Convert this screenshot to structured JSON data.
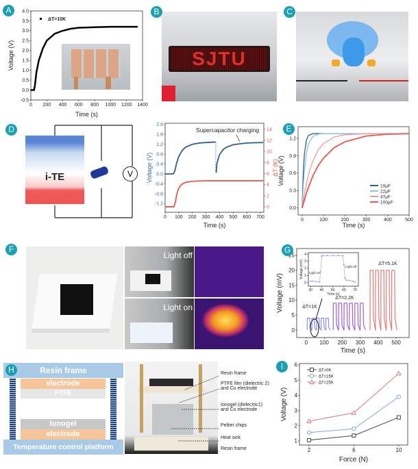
{
  "panels": {
    "a": "A",
    "b": "B",
    "c": "C",
    "d": "D",
    "e": "E",
    "f": "F",
    "g": "G",
    "h": "H",
    "i": "I"
  },
  "colors": {
    "panel_label": "#1a9fb3",
    "blue": "#2b5c93",
    "red": "#e8564a",
    "light_blue": "#8fc1e3",
    "pink": "#ef9a9a",
    "purple": "#a05ee0",
    "light_purple": "#8e8ef0"
  },
  "photos": {
    "b_display_text": "SJTU",
    "f_light_off": "Light off",
    "f_light_on": "Light on"
  },
  "schematic_d": {
    "block_label": "i-TE",
    "meter_symbol": "V"
  },
  "schematic_h": {
    "top": "Resin frame",
    "electrode_top": "electrode",
    "ptfe": "PTFE",
    "ionogel": "Ionogel",
    "electrode_bottom": "electrode",
    "bottom": "Temperature control platform",
    "callouts": [
      "Resin frame",
      "PTFE film (dielectric 2)\nand Cu electrode",
      "Ionogel (dielectric1)\nand Cu electrode",
      "Peltier chips",
      "Heat sink",
      "Resin frame"
    ]
  },
  "chart_data": [
    {
      "panel": "A",
      "type": "line",
      "xlabel": "Time (s)",
      "ylabel": "Voltage (V)",
      "xlim": [
        0,
        1400
      ],
      "ylim": [
        -0.5,
        4.0
      ],
      "xticks": [
        "0",
        "200",
        "400",
        "600",
        "800",
        "1000",
        "1200",
        "1400"
      ],
      "yticks": [
        "-0.5",
        "0.0",
        "0.5",
        "1.0",
        "1.5",
        "2.0",
        "2.5",
        "3.0",
        "3.5",
        "4.0"
      ],
      "legend": "top-left",
      "series": [
        {
          "name": "ΔT=10K",
          "color": "#000000",
          "x": [
            0,
            40,
            50,
            70,
            100,
            150,
            200,
            300,
            400,
            500,
            600,
            800,
            1000,
            1200,
            1340
          ],
          "y": [
            0,
            0,
            0.2,
            0.9,
            1.5,
            2.1,
            2.5,
            2.85,
            3.0,
            3.1,
            3.15,
            3.18,
            3.2,
            3.2,
            3.2
          ]
        }
      ]
    },
    {
      "panel": "D",
      "type": "line",
      "xlabel": "Time (s)",
      "ylabel": "Voltage (V)",
      "ylabel2": "ΔT (K)",
      "xlim": [
        0,
        725
      ],
      "ylim": [
        -1.55,
        2.05
      ],
      "ylim2": [
        -1,
        15.1
      ],
      "xticks": [
        "0",
        "100",
        "200",
        "300",
        "400",
        "500",
        "600",
        "700"
      ],
      "yticks": [
        "-1.2",
        "-0.8",
        "-0.4",
        "0.0",
        "0.4",
        "0.8",
        "1.2",
        "1.6",
        "2.0"
      ],
      "yticks2": [
        "0",
        "2",
        "4",
        "6",
        "8",
        "10",
        "12",
        "14"
      ],
      "annotation": "Supercapacitor charging",
      "series": [
        {
          "axis": "left",
          "color": "#2b5c93",
          "x": [
            0,
            60,
            70,
            85,
            100,
            125,
            150,
            200,
            250,
            300,
            370
          ],
          "y": [
            0,
            0,
            0.1,
            0.45,
            0.7,
            0.95,
            1.08,
            1.2,
            1.25,
            1.27,
            1.29
          ]
        },
        {
          "axis": "left",
          "color": "#2b5c93",
          "x": [
            375,
            380,
            390,
            400,
            425,
            450,
            500,
            550,
            600,
            650,
            720
          ],
          "y": [
            0.05,
            0.4,
            0.62,
            0.78,
            0.98,
            1.08,
            1.18,
            1.22,
            1.25,
            1.26,
            1.27
          ]
        },
        {
          "axis": "right",
          "color": "#e8564a",
          "x": [
            0,
            65,
            75,
            85,
            100,
            125,
            150,
            200,
            250,
            300,
            400,
            720
          ],
          "y": [
            0,
            0,
            0.8,
            2.2,
            3.4,
            4.1,
            4.4,
            4.6,
            4.65,
            4.7,
            4.7,
            4.7
          ]
        }
      ]
    },
    {
      "panel": "E",
      "type": "line",
      "xlabel": "Time (s)",
      "ylabel": "Voltage (V)",
      "xlim": [
        -19,
        500
      ],
      "ylim": [
        -0.12,
        1.4
      ],
      "xticks": [
        "0",
        "100",
        "200",
        "300",
        "400",
        "500"
      ],
      "yticks": [
        "0.0",
        "0.3",
        "0.6",
        "0.9",
        "1.2"
      ],
      "legend": "bottom-right",
      "x": [
        0,
        5,
        10,
        20,
        30,
        50,
        75,
        100,
        150,
        200,
        300,
        400,
        500
      ],
      "series": [
        {
          "name": "10μF",
          "color": "#2b5c93",
          "y": [
            0,
            0.6,
            0.91,
            1.17,
            1.25,
            1.28,
            1.28,
            1.28,
            1.28,
            1.28,
            1.28,
            1.28,
            1.28
          ]
        },
        {
          "name": "22μF",
          "color": "#8fc1e3",
          "y": [
            0,
            0.36,
            0.62,
            0.94,
            1.11,
            1.23,
            1.27,
            1.28,
            1.28,
            1.28,
            1.28,
            1.28,
            1.28
          ]
        },
        {
          "name": "47μF",
          "color": "#ef9a9a",
          "y": [
            0,
            0.12,
            0.23,
            0.42,
            0.58,
            0.81,
            1.0,
            1.11,
            1.22,
            1.26,
            1.28,
            1.28,
            1.28
          ]
        },
        {
          "name": "100μF",
          "color": "#e8564a",
          "y": [
            0,
            0.07,
            0.13,
            0.26,
            0.36,
            0.55,
            0.73,
            0.86,
            1.04,
            1.14,
            1.24,
            1.27,
            1.28
          ]
        }
      ]
    },
    {
      "panel": "G",
      "type": "line",
      "xlabel": "Time (s)",
      "ylabel": "Voltage (mV)",
      "xlim": [
        -53,
        572
      ],
      "ylim": [
        -2.5,
        27.3
      ],
      "xticks": [
        "0",
        "100",
        "200",
        "300",
        "400",
        "500"
      ],
      "yticks": [
        "0",
        "5",
        "10",
        "15",
        "20",
        "25"
      ],
      "segments": [
        {
          "label": "ΔT=1K",
          "color": "#8e8ef0",
          "start": 5,
          "period": 26,
          "pulses": 5,
          "amplitude": 4
        },
        {
          "label": "ΔT=2.2K",
          "color": "#a05ee0",
          "start": 150,
          "period": 30,
          "pulses": 6,
          "amplitude": 9
        },
        {
          "label": "ΔT=5.1K",
          "color": "#e8787a",
          "start": 355,
          "period": 30,
          "pulses": 5,
          "amplitude": 20
        }
      ],
      "inset": {
        "xlabel": "Time (s)",
        "ylabel": "Voltage (mV)",
        "xlim": [
          28,
          73
        ],
        "ylim": [
          -0.5,
          4.2
        ],
        "xticks": [
          "30",
          "40",
          "50",
          "60",
          "70"
        ],
        "yticks": [
          "0",
          "1",
          "2",
          "3",
          "4"
        ],
        "annotations": [
          "Light on",
          "Light off"
        ],
        "x": [
          30,
          32,
          35,
          38,
          39,
          40,
          41,
          45,
          50,
          55,
          59,
          60,
          61,
          62,
          65,
          68,
          70
        ],
        "y": [
          0.2,
          0.2,
          0.15,
          0.1,
          1.5,
          3.7,
          3.8,
          3.8,
          3.8,
          3.8,
          3.75,
          2.5,
          0.6,
          0.35,
          0.3,
          0.2,
          0.1
        ]
      }
    },
    {
      "panel": "I",
      "type": "line",
      "xlabel": "Force (N)",
      "ylabel": "Voltage (V)",
      "xlim": [
        1.15,
        10.8
      ],
      "ylim": [
        0.73,
        6.09
      ],
      "xticks": [
        "2",
        "6",
        "10"
      ],
      "yticks": [
        "1",
        "2",
        "3",
        "4",
        "5",
        "6"
      ],
      "legend": "top-left",
      "x": [
        2,
        6,
        10
      ],
      "series": [
        {
          "name": "ΔT=0K",
          "color": "#444444",
          "marker": "square",
          "y": [
            1.05,
            1.35,
            2.55
          ]
        },
        {
          "name": "ΔT=15K",
          "color": "#7fa8d8",
          "marker": "circle",
          "y": [
            1.55,
            1.8,
            3.9
          ]
        },
        {
          "name": "ΔT=25K",
          "color": "#e07a7a",
          "marker": "triangle",
          "y": [
            2.3,
            2.85,
            5.45
          ]
        }
      ]
    }
  ]
}
